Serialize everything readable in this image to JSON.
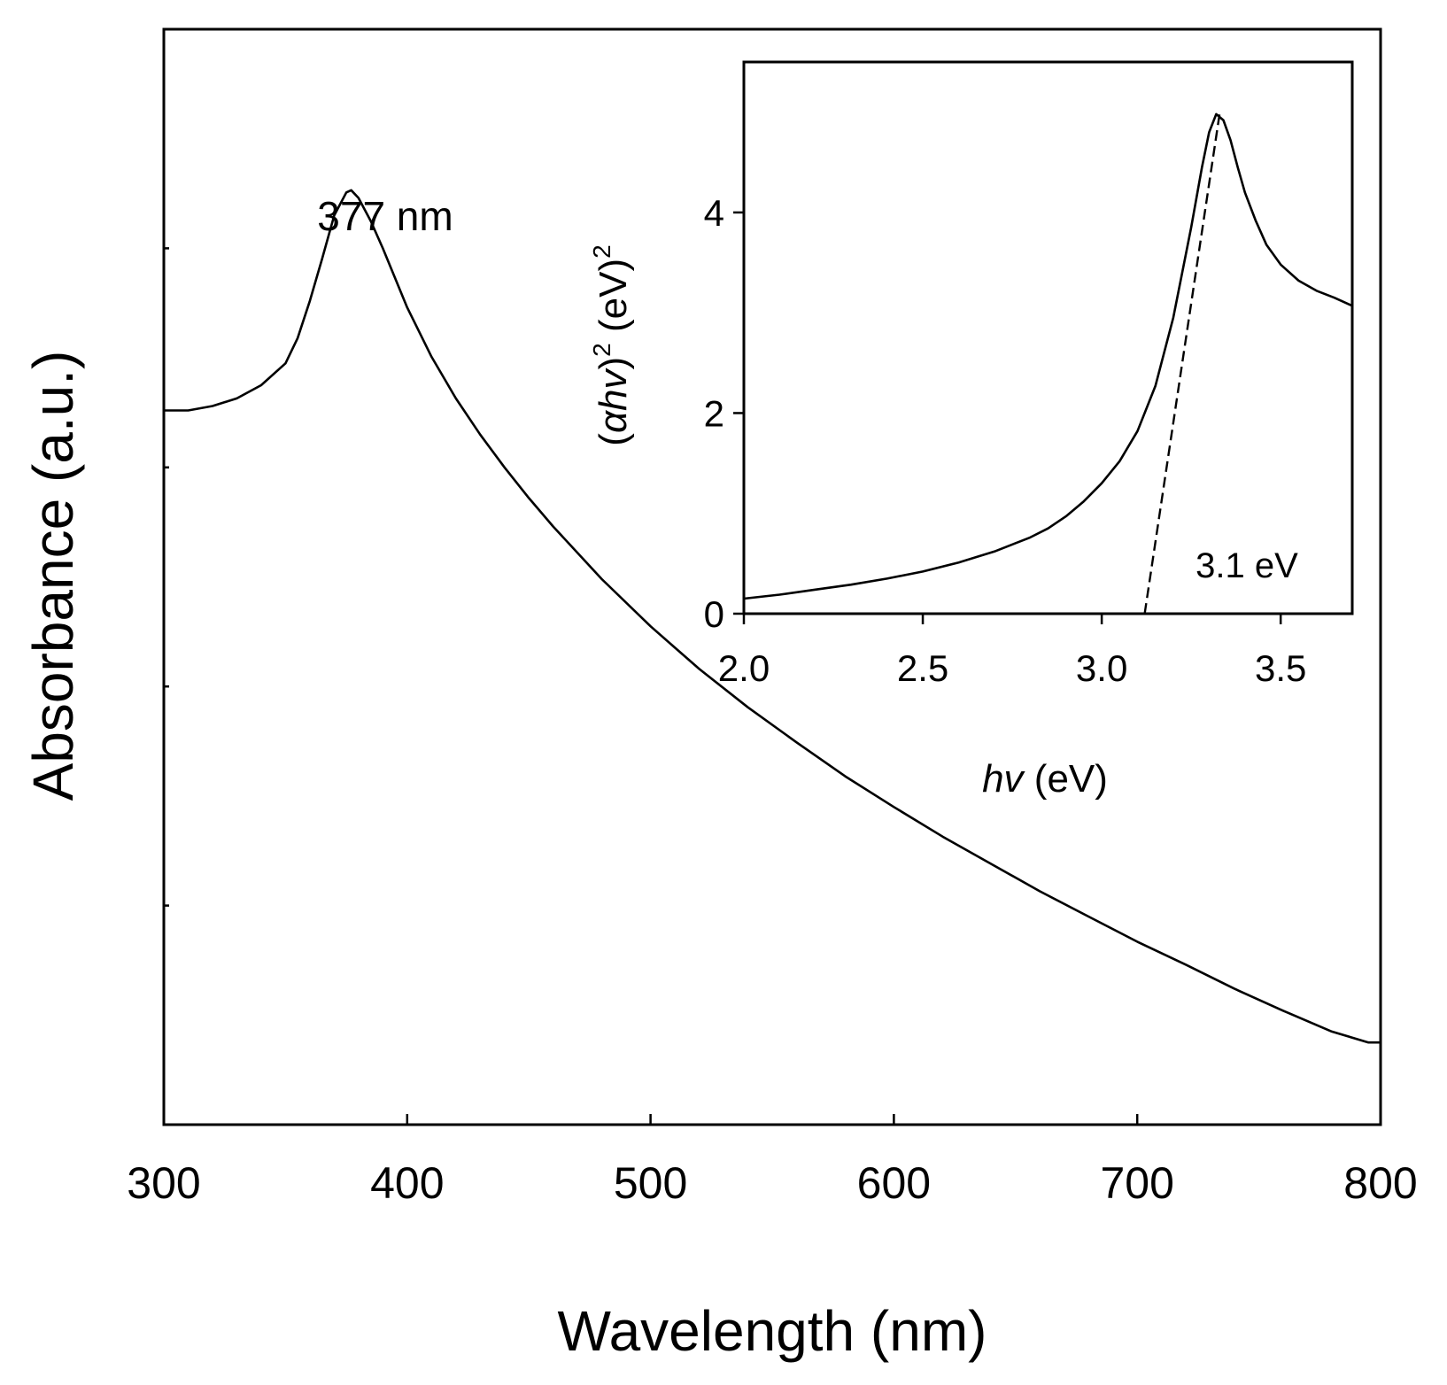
{
  "chart_data": [
    {
      "id": "main",
      "type": "line",
      "title": "",
      "xlabel": "Wavelength (nm)",
      "ylabel": "Absorbance (a.u.)",
      "xlim": [
        300,
        800
      ],
      "ylim": [
        0,
        1
      ],
      "xticks": [
        300,
        400,
        500,
        600,
        700,
        800
      ],
      "xtick_labels": [
        "300",
        "400",
        "500",
        "600",
        "700",
        "800"
      ],
      "yticks_unlabeled": [
        0.2,
        0.4,
        0.6,
        0.8
      ],
      "grid": false,
      "series": [
        {
          "name": "Absorbance",
          "x": [
            300,
            310,
            320,
            330,
            340,
            350,
            355,
            360,
            365,
            370,
            375,
            377,
            380,
            385,
            390,
            400,
            410,
            420,
            430,
            440,
            450,
            460,
            480,
            500,
            520,
            540,
            560,
            580,
            600,
            620,
            640,
            660,
            680,
            700,
            720,
            740,
            760,
            780,
            795,
            800
          ],
          "y": [
            0.652,
            0.652,
            0.656,
            0.663,
            0.675,
            0.695,
            0.718,
            0.752,
            0.79,
            0.83,
            0.851,
            0.853,
            0.846,
            0.825,
            0.8,
            0.746,
            0.701,
            0.663,
            0.63,
            0.6,
            0.572,
            0.546,
            0.498,
            0.455,
            0.416,
            0.381,
            0.349,
            0.318,
            0.29,
            0.263,
            0.238,
            0.213,
            0.19,
            0.167,
            0.146,
            0.124,
            0.104,
            0.085,
            0.075,
            0.075
          ]
        }
      ],
      "annotations": [
        {
          "text": "377 nm",
          "x": 377,
          "y": 0.853
        }
      ]
    },
    {
      "id": "inset",
      "type": "line",
      "title": "",
      "xlabel_italic": "hv",
      "xlabel_rest": "(eV)",
      "ylabel_parts": {
        "open": "(",
        "alpha": "α",
        "hv": "hv",
        "close": ")",
        "exp": "2",
        "unit": "(eV)",
        "unit_exp": "2"
      },
      "xlim": [
        2.0,
        3.7
      ],
      "ylim": [
        0,
        5.5
      ],
      "xticks": [
        2.0,
        2.5,
        3.0,
        3.5
      ],
      "xtick_labels": [
        "2.0",
        "2.5",
        "3.0",
        "3.5"
      ],
      "yticks": [
        0,
        2,
        4
      ],
      "ytick_labels": [
        "0",
        "2",
        "4"
      ],
      "grid": false,
      "series": [
        {
          "name": "(αhv)^2",
          "x": [
            2.0,
            2.1,
            2.2,
            2.3,
            2.4,
            2.5,
            2.6,
            2.7,
            2.8,
            2.85,
            2.9,
            2.95,
            3.0,
            3.05,
            3.1,
            3.15,
            3.2,
            3.25,
            3.28,
            3.3,
            3.32,
            3.34,
            3.36,
            3.38,
            3.4,
            3.43,
            3.46,
            3.5,
            3.55,
            3.6,
            3.65,
            3.7
          ],
          "y": [
            0.15,
            0.19,
            0.24,
            0.29,
            0.35,
            0.42,
            0.51,
            0.62,
            0.76,
            0.85,
            0.97,
            1.12,
            1.3,
            1.52,
            1.82,
            2.27,
            2.95,
            3.85,
            4.45,
            4.8,
            4.98,
            4.92,
            4.72,
            4.45,
            4.2,
            3.92,
            3.68,
            3.48,
            3.32,
            3.22,
            3.15,
            3.07
          ]
        },
        {
          "name": "linear fit",
          "style": "dashed",
          "x": [
            3.12,
            3.33
          ],
          "y": [
            0,
            5.0
          ]
        }
      ],
      "annotations": [
        {
          "text": "3.1 eV",
          "x": 3.4,
          "y": 0.45
        }
      ]
    }
  ]
}
